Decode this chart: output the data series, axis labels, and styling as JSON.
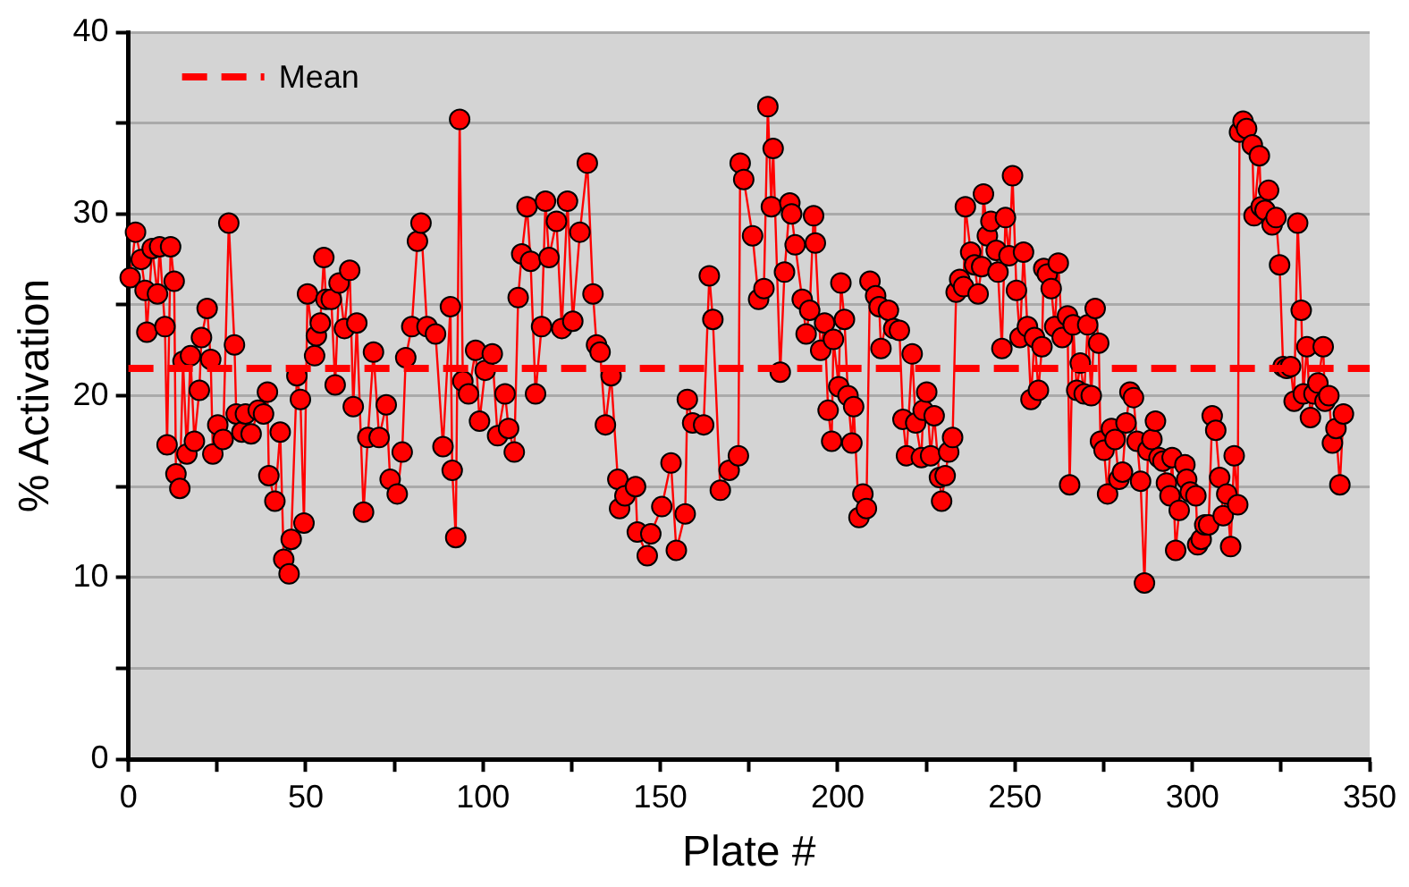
{
  "chart_data": {
    "type": "line",
    "xlabel": "Plate #",
    "ylabel": "% Activation",
    "xlim": [
      0,
      350
    ],
    "xticks": [
      0,
      {
        "value": 25,
        "label": null
      },
      50,
      {
        "value": 75,
        "label": null
      },
      100,
      {
        "value": 125,
        "label": null
      },
      150,
      {
        "value": 175,
        "label": null
      },
      200,
      {
        "value": 225,
        "label": null
      },
      250,
      {
        "value": 275,
        "label": null
      },
      300,
      {
        "value": 325,
        "label": null
      },
      350
    ],
    "ylim": [
      0,
      40
    ],
    "yticks": [
      0,
      {
        "value": 5,
        "label": null
      },
      10,
      {
        "value": 15,
        "label": null
      },
      20,
      {
        "value": 25,
        "label": null
      },
      30,
      {
        "value": 35,
        "label": null
      },
      40
    ],
    "grid": "y",
    "marker": "circle",
    "line_style": "solid",
    "legend": "top left",
    "ref_lines": [
      {
        "axis": "y",
        "value": 21.5,
        "label": "Mean",
        "color": "#ff0000",
        "line_style": "dashed"
      }
    ],
    "series": [
      {
        "color": "#ff0000",
        "x": [
          0.5,
          2,
          3.6,
          4.7,
          5.2,
          6.7,
          8.2,
          8.8,
          10.3,
          10.9,
          11.9,
          12.9,
          13.4,
          14.5,
          15.4,
          16.5,
          17.5,
          18.6,
          20,
          20.6,
          22.2,
          23.2,
          23.8,
          25.2,
          26.7,
          28.3,
          29.9,
          30.4,
          32,
          33,
          34.6,
          36.6,
          38.1,
          39.2,
          39.6,
          41.3,
          42.8,
          43.8,
          45.3,
          45.9,
          47.5,
          48.5,
          49.5,
          50.5,
          52.5,
          53,
          54.1,
          55.1,
          55.7,
          57.2,
          58.3,
          59.4,
          60.9,
          62.4,
          63.4,
          64.4,
          66.3,
          67.5,
          69.1,
          70.7,
          72.7,
          73.8,
          75.8,
          77.2,
          78.2,
          79.9,
          81.5,
          82.5,
          84.2,
          86.6,
          88.7,
          90.8,
          91.3,
          92.3,
          93.4,
          94.3,
          95.9,
          97.9,
          99,
          100.6,
          102.6,
          104.1,
          106.2,
          107.2,
          108.8,
          109.9,
          110.9,
          112.4,
          113.4,
          114.8,
          116.5,
          117.6,
          118.6,
          120.7,
          122.2,
          123.8,
          125.3,
          127.3,
          129.4,
          131,
          132,
          133,
          134.5,
          136.1,
          138,
          138.5,
          140,
          143,
          143.5,
          146.3,
          147.3,
          150.4,
          153,
          154.5,
          157,
          157.6,
          159.1,
          162.2,
          163.8,
          164.8,
          166.9,
          169.4,
          172,
          172.5,
          173.5,
          176,
          177.7,
          179.2,
          180.3,
          181.3,
          181.8,
          183.8,
          185,
          186.5,
          187,
          188,
          190,
          191.1,
          192.1,
          193.2,
          193.7,
          195.2,
          196.3,
          197.3,
          198.3,
          198.8,
          200.3,
          200.9,
          201.9,
          202.9,
          204,
          204.5,
          206,
          207.1,
          208.1,
          209.1,
          210.7,
          211.7,
          212.2,
          214.3,
          215.8,
          217.4,
          218.4,
          219.4,
          221,
          222,
          223.6,
          224.1,
          225.1,
          226.2,
          227.2,
          228.7,
          229.3,
          230.3,
          231.3,
          232.4,
          233.4,
          234.4,
          235.5,
          236,
          237.5,
          238.6,
          239.6,
          240.6,
          241.1,
          242.2,
          243.2,
          244.7,
          245.2,
          246.3,
          247.3,
          248.3,
          249.3,
          250.4,
          251.4,
          252.4,
          253.5,
          254.5,
          255.5,
          256.6,
          257.6,
          258.1,
          259.1,
          260.2,
          261.2,
          262.2,
          263.3,
          264.8,
          265.4,
          266.4,
          267.4,
          268.4,
          269.5,
          270.5,
          271.5,
          272.6,
          273.6,
          274.1,
          275.1,
          276.1,
          277.2,
          278.2,
          279.3,
          280.3,
          281.3,
          282.4,
          283.4,
          284.4,
          285.4,
          286.5,
          287.5,
          288.6,
          289.6,
          290.6,
          291.7,
          292.7,
          293.7,
          294.3,
          295.3,
          296.3,
          297.9,
          298.4,
          299.4,
          301,
          301.5,
          302.5,
          303.5,
          304.6,
          305.6,
          306.6,
          307.7,
          308.7,
          309.7,
          310.8,
          311.8,
          312.8,
          313.3,
          314.3,
          315.3,
          316.9,
          317.4,
          318.9,
          319.4,
          320.5,
          321.5,
          322.5,
          323.6,
          324.6,
          325.6,
          326.6,
          327.7,
          328.7,
          329.7,
          330.7,
          331.3,
          332.3,
          333.3,
          334.3,
          335.4,
          336.9,
          337.4,
          338.5,
          339.5,
          340.5,
          341.6,
          342.6
        ],
        "values": [
          26.5,
          29,
          27.5,
          25.8,
          23.5,
          28.1,
          25.6,
          28.2,
          23.8,
          17.3,
          28.2,
          26.3,
          15.7,
          14.9,
          21.9,
          16.8,
          22.2,
          17.5,
          20.3,
          23.2,
          24.8,
          22,
          16.8,
          18.4,
          17.6,
          29.5,
          22.8,
          19,
          18,
          19,
          17.9,
          19.2,
          19,
          20.2,
          15.6,
          14.2,
          18,
          11,
          10.2,
          12.1,
          21.1,
          19.8,
          13,
          25.6,
          22.2,
          23.3,
          24,
          27.6,
          25.3,
          25.3,
          20.6,
          26.2,
          23.7,
          26.9,
          19.4,
          24,
          13.6,
          17.7,
          22.4,
          17.7,
          19.5,
          15.4,
          14.6,
          16.9,
          22.1,
          23.8,
          28.5,
          29.5,
          23.8,
          23.4,
          17.2,
          24.9,
          15.9,
          12.2,
          35.2,
          20.8,
          20.1,
          22.5,
          18.6,
          21.4,
          22.3,
          17.8,
          20.1,
          18.2,
          16.9,
          25.4,
          27.8,
          30.4,
          27.4,
          20.1,
          23.8,
          30.7,
          27.6,
          29.6,
          23.7,
          30.7,
          24.1,
          29,
          32.8,
          25.6,
          22.8,
          22.4,
          18.4,
          21.1,
          15.4,
          13.8,
          14.5,
          15,
          12.5,
          11.2,
          12.4,
          13.9,
          16.3,
          11.5,
          13.5,
          19.8,
          18.5,
          18.4,
          26.6,
          24.2,
          14.8,
          15.9,
          16.7,
          32.8,
          31.9,
          28.8,
          25.3,
          25.9,
          35.9,
          30.4,
          33.6,
          21.3,
          26.8,
          30.6,
          30,
          28.3,
          25.3,
          23.4,
          24.7,
          29.9,
          28.4,
          22.5,
          24,
          19.2,
          17.5,
          23.1,
          20.5,
          26.2,
          24.2,
          20,
          17.4,
          19.4,
          13.3,
          14.6,
          13.8,
          26.3,
          25.5,
          24.9,
          22.6,
          24.7,
          23.7,
          23.6,
          18.7,
          16.7,
          22.3,
          18.5,
          16.6,
          19.2,
          20.2,
          16.7,
          18.9,
          15.5,
          14.2,
          15.6,
          16.9,
          17.7,
          25.7,
          26.4,
          26,
          30.4,
          27.9,
          27.2,
          25.6,
          27.1,
          31.1,
          28.8,
          29.6,
          28,
          26.8,
          22.6,
          29.8,
          27.7,
          32.1,
          25.8,
          23.2,
          27.9,
          23.8,
          19.8,
          23.2,
          20.3,
          22.7,
          27,
          26.7,
          25.9,
          23.8,
          27.3,
          23.2,
          24.4,
          15.1,
          23.9,
          20.3,
          21.8,
          20.1,
          23.9,
          20,
          24.8,
          22.9,
          17.5,
          17,
          14.6,
          18.2,
          17.6,
          15.4,
          15.8,
          18.5,
          20.2,
          19.9,
          17.5,
          15.3,
          9.7,
          17,
          17.6,
          18.6,
          16.6,
          16.4,
          15.2,
          14.5,
          16.6,
          11.5,
          13.7,
          16.2,
          15.4,
          14.7,
          14.5,
          11.8,
          12.1,
          12.9,
          12.9,
          18.9,
          18.1,
          15.5,
          13.4,
          14.6,
          11.7,
          16.7,
          14,
          34.5,
          35.1,
          34.7,
          33.8,
          29.9,
          33.2,
          30.4,
          30.2,
          31.3,
          29.4,
          29.8,
          27.2,
          21.6,
          21.5,
          21.6,
          19.7,
          29.5,
          24.7,
          20.1,
          22.7,
          18.8,
          20.1,
          20.7,
          22.7,
          19.7,
          20,
          17.4,
          18.2,
          15.1,
          19
        ]
      }
    ]
  }
}
